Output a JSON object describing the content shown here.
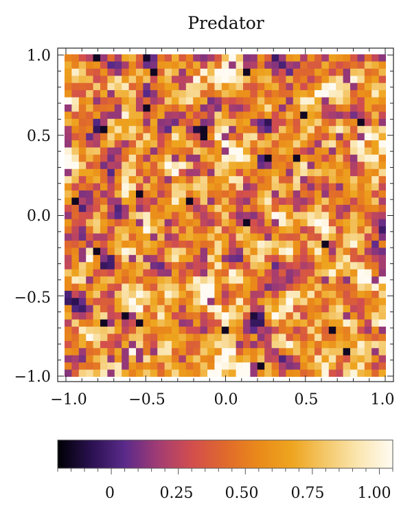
{
  "chart_data": {
    "type": "heatmap",
    "title": "Predator",
    "xlabel": "",
    "ylabel": "",
    "xlim": [
      -1.0,
      1.0
    ],
    "ylim": [
      -1.0,
      1.0
    ],
    "x_ticks": [
      "−1.0",
      "−0.5",
      "0.0",
      "0.5",
      "1.0"
    ],
    "y_ticks": [
      "1.0",
      "0.5",
      "0.0",
      "−0.5",
      "−1.0"
    ],
    "grid": false,
    "field_range": [
      -0.2,
      1.05
    ],
    "grid_resolution": 45,
    "colorbar": {
      "min": -0.2,
      "max": 1.05,
      "ticks": [
        "0",
        "0.25",
        "0.50",
        "0.75",
        "1.00"
      ],
      "tick_values": [
        0,
        0.25,
        0.5,
        0.75,
        1.0
      ],
      "colormap": [
        "#000004",
        "#2a1150",
        "#5a2a8a",
        "#a23c73",
        "#d24e4e",
        "#e0692c",
        "#ea8a1a",
        "#eea51f",
        "#f4c86a",
        "#fbe7b3",
        "#fffbf2"
      ]
    }
  }
}
